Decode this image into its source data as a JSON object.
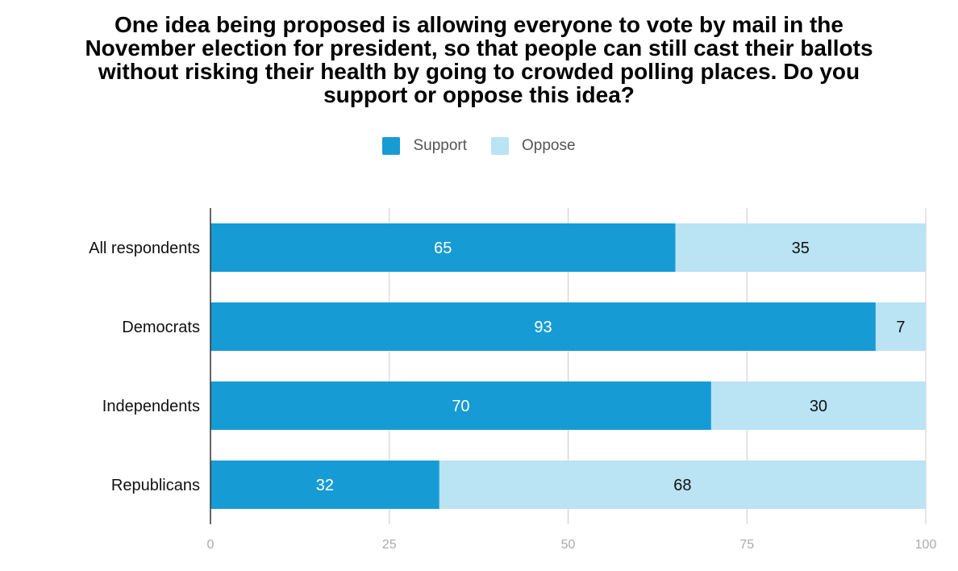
{
  "colors": {
    "support": "#179bd5",
    "oppose": "#bae3f4",
    "grid": "#cccccc",
    "axis": "#333333",
    "tick": "#aaaaaa"
  },
  "chart_data": {
    "type": "bar",
    "orientation": "horizontal",
    "stacked": true,
    "title_lines": [
      "One idea being proposed is allowing everyone to vote by mail in the",
      "November election for president, so that people can still cast their ballots",
      "without risking their health by going to crowded polling places. Do you",
      "support or oppose this idea?"
    ],
    "categories": [
      "All respondents",
      "Democrats",
      "Independents",
      "Republicans"
    ],
    "series": [
      {
        "name": "Support",
        "values": [
          65,
          93,
          70,
          32
        ]
      },
      {
        "name": "Oppose",
        "values": [
          35,
          7,
          30,
          68
        ]
      }
    ],
    "xlim": [
      0,
      100
    ],
    "xticks": [
      0,
      25,
      50,
      75,
      100
    ],
    "grid": true,
    "legend_position": "top-center",
    "data_labels": true
  }
}
